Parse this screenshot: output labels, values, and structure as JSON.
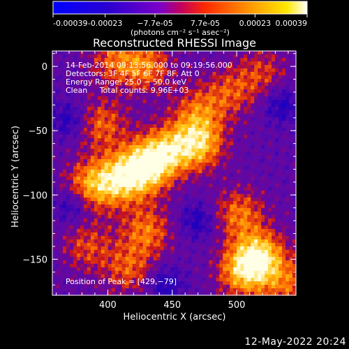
{
  "colorbar": {
    "tick_labels": [
      "-0.00039",
      "-0.00023",
      "−7.7e-05",
      "7.7e-05",
      "0.00023",
      "0.00039"
    ],
    "tick_values": [
      -0.00039,
      -0.00023,
      -7.7e-05,
      7.7e-05,
      0.00023,
      0.00039
    ],
    "range": [
      -0.00039,
      0.00039
    ],
    "unit_label": "(photons cm⁻² s⁻¹ asec⁻²)",
    "colormap": "rhessi_std_gamma",
    "colors": [
      "#0000ff",
      "#3a00c0",
      "#7a00c8",
      "#ff2000",
      "#ff9a00",
      "#ffe800",
      "#ffffff"
    ]
  },
  "chart_data": {
    "type": "heatmap",
    "title": "Reconstructed RHESSI Image",
    "xlabel": "Heliocentric X (arcsec)",
    "ylabel": "Heliocentric Y (arcsec)",
    "xlim": [
      357,
      546
    ],
    "ylim": [
      -178,
      12
    ],
    "x_ticks": [
      400,
      450,
      500
    ],
    "y_ticks": [
      0,
      -50,
      -100,
      -150
    ],
    "x_tick_labels": [
      "400",
      "450",
      "500"
    ],
    "y_tick_labels": [
      "0",
      "−50",
      "−100",
      "−150"
    ],
    "grid": false,
    "annotations": [
      "14-Feb-2014 09:13:56.000 to 09:19:56.000",
      "Detectors: 3F 4F 5F 6F 7F 8F, Att 0",
      "Energy Range: 25.0 − 50.0 keV",
      "Clean     Total counts: 9.96E+03"
    ],
    "peak_label": "Position of Peak = [429,−79]",
    "peak_position": [
      429,
      -79
    ],
    "emission_sources": [
      {
        "x": 429,
        "y": -79,
        "peak": 1.0
      },
      {
        "x": 470,
        "y": -60,
        "peak": 0.88
      },
      {
        "x": 445,
        "y": -66,
        "peak": 0.72
      },
      {
        "x": 409,
        "y": -88,
        "peak": 0.8
      },
      {
        "x": 386,
        "y": -93,
        "peak": 0.7
      },
      {
        "x": 518,
        "y": -148,
        "peak": 0.92
      },
      {
        "x": 505,
        "y": -160,
        "peak": 0.75
      },
      {
        "x": 502,
        "y": -115,
        "peak": 0.6
      },
      {
        "x": 430,
        "y": -128,
        "peak": 0.6
      },
      {
        "x": 416,
        "y": -158,
        "peak": 0.5
      },
      {
        "x": 384,
        "y": -140,
        "peak": 0.45
      },
      {
        "x": 395,
        "y": -45,
        "peak": 0.55
      },
      {
        "x": 430,
        "y": 0,
        "peak": 0.6
      },
      {
        "x": 405,
        "y": 5,
        "peak": 0.5
      },
      {
        "x": 470,
        "y": -35,
        "peak": 0.5
      },
      {
        "x": 495,
        "y": -20,
        "peak": 0.45
      },
      {
        "x": 520,
        "y": -5,
        "peak": 0.4
      },
      {
        "x": 540,
        "y": -170,
        "peak": 0.5
      }
    ],
    "negative_regions": [
      {
        "x": 370,
        "y": -42
      },
      {
        "x": 470,
        "y": -120
      },
      {
        "x": 445,
        "y": -170
      },
      {
        "x": 535,
        "y": -30
      },
      {
        "x": 372,
        "y": -108
      }
    ]
  },
  "footer": {
    "date": "12-May-2022 20:24"
  }
}
